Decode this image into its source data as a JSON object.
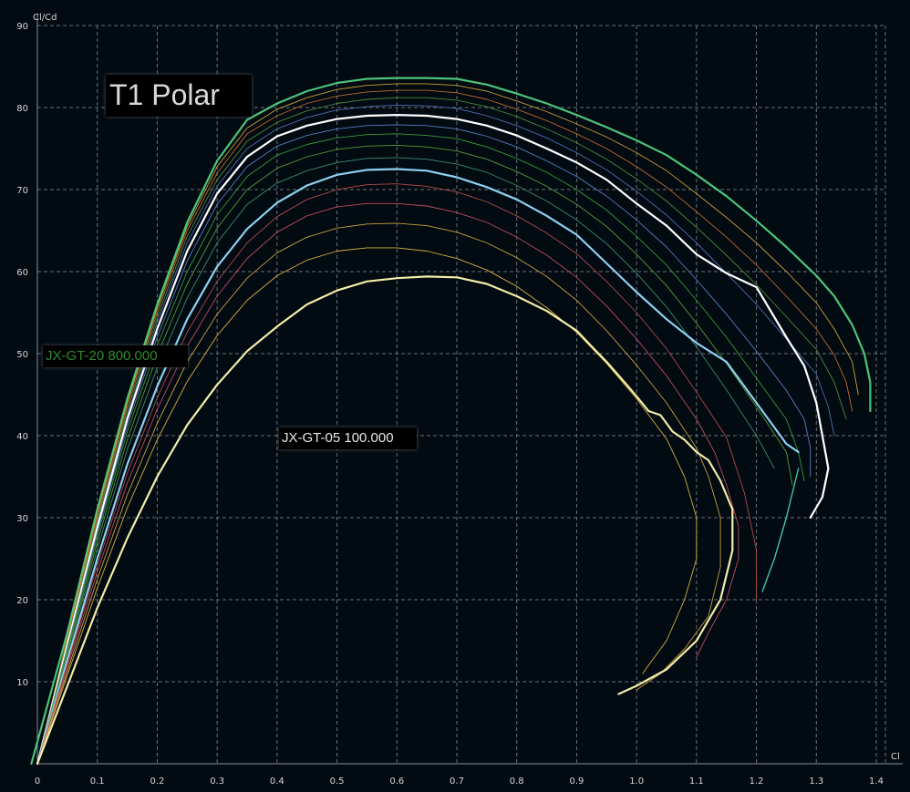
{
  "chart_data": {
    "type": "line",
    "title": "T1 Polar",
    "xlabel": "Cl",
    "ylabel": "Cl/Cd",
    "xlim": [
      0,
      1.4
    ],
    "ylim": [
      0,
      90
    ],
    "grid": true,
    "grid_style": "dashed",
    "background_color": "#020a12",
    "x_tick_labels": [
      "0",
      "0.1",
      "0.2",
      "0.3",
      "0.4",
      "0.5",
      "0.6",
      "0.7",
      "0.8",
      "0.9",
      "1.0",
      "1.1",
      "1.2",
      "1.3",
      "1.4"
    ],
    "y_tick_labels": [
      "10",
      "20",
      "30",
      "40",
      "50",
      "60",
      "70",
      "80",
      "90"
    ],
    "annotations": [
      {
        "text": "JX-GT-20  800.000",
        "color": "#2e8b2e"
      },
      {
        "text": "JX-GT-05  100.000",
        "color": "#e8e8e8"
      }
    ],
    "series": [
      {
        "name": "JX-GT-20  800.000",
        "color": "#4cc47a",
        "width": 2.2,
        "x": [
          -0.01,
          0.05,
          0.1,
          0.15,
          0.2,
          0.25,
          0.3,
          0.35,
          0.4,
          0.45,
          0.5,
          0.55,
          0.6,
          0.65,
          0.7,
          0.75,
          0.8,
          0.85,
          0.9,
          0.95,
          1.0,
          1.05,
          1.1,
          1.15,
          1.2,
          1.25,
          1.3,
          1.33,
          1.36,
          1.38,
          1.39,
          1.39
        ],
        "y": [
          0,
          16,
          31,
          44.5,
          56,
          66,
          73.5,
          78.5,
          80.5,
          82,
          83,
          83.5,
          83.6,
          83.6,
          83.5,
          82.8,
          81.7,
          80.5,
          79.1,
          77.6,
          76,
          74.2,
          71.8,
          69.2,
          66.2,
          63,
          59.5,
          57,
          53.5,
          50,
          46.5,
          43
        ]
      },
      {
        "name": "",
        "color": "#c9a032",
        "width": 0.9,
        "x": [
          0.0,
          0.05,
          0.1,
          0.15,
          0.2,
          0.25,
          0.3,
          0.35,
          0.4,
          0.45,
          0.5,
          0.55,
          0.6,
          0.65,
          0.7,
          0.75,
          0.8,
          0.85,
          0.9,
          0.95,
          1.0,
          1.05,
          1.1,
          1.15,
          1.2,
          1.25,
          1.3,
          1.33,
          1.36,
          1.37
        ],
        "y": [
          0,
          15.5,
          30.5,
          44,
          55.5,
          65.5,
          72.8,
          77.5,
          79.8,
          81.2,
          82.2,
          82.7,
          82.9,
          82.9,
          82.7,
          82,
          80.8,
          79.5,
          78,
          76.4,
          74.5,
          72.3,
          69.5,
          66.6,
          63.5,
          60,
          56.2,
          53,
          49,
          45
        ]
      },
      {
        "name": "",
        "color": "#c06a2e",
        "width": 0.9,
        "x": [
          0.0,
          0.05,
          0.1,
          0.15,
          0.2,
          0.25,
          0.3,
          0.35,
          0.4,
          0.45,
          0.5,
          0.55,
          0.6,
          0.65,
          0.7,
          0.75,
          0.8,
          0.85,
          0.9,
          0.95,
          1.0,
          1.05,
          1.1,
          1.15,
          1.2,
          1.25,
          1.3,
          1.33,
          1.35,
          1.36
        ],
        "y": [
          0,
          15.2,
          30,
          43.5,
          55,
          65,
          72,
          76.8,
          79,
          80.5,
          81.4,
          81.9,
          82.1,
          82.1,
          81.8,
          81,
          79.8,
          78.4,
          76.8,
          75,
          72.8,
          70.3,
          67.3,
          64.2,
          60.8,
          57,
          53,
          49.8,
          46.5,
          43
        ]
      },
      {
        "name": "",
        "color": "#4a8a3c",
        "width": 0.9,
        "x": [
          0.0,
          0.05,
          0.1,
          0.15,
          0.2,
          0.25,
          0.3,
          0.35,
          0.4,
          0.45,
          0.5,
          0.55,
          0.6,
          0.65,
          0.7,
          0.75,
          0.8,
          0.85,
          0.9,
          0.95,
          1.0,
          1.05,
          1.1,
          1.15,
          1.2,
          1.25,
          1.3,
          1.33,
          1.35
        ],
        "y": [
          0,
          15,
          29.6,
          43,
          54.4,
          64.3,
          71.2,
          75.9,
          78.2,
          79.6,
          80.5,
          81,
          81.2,
          81.2,
          80.9,
          80.1,
          78.9,
          77.4,
          75.7,
          73.7,
          71.3,
          68.6,
          65.4,
          62,
          58.4,
          54.5,
          50.5,
          46.5,
          42
        ]
      },
      {
        "name": "",
        "color": "#4f6fb0",
        "width": 0.9,
        "x": [
          0.0,
          0.05,
          0.1,
          0.15,
          0.2,
          0.25,
          0.3,
          0.35,
          0.4,
          0.45,
          0.5,
          0.55,
          0.6,
          0.65,
          0.7,
          0.75,
          0.8,
          0.85,
          0.9,
          0.95,
          1.0,
          1.05,
          1.1,
          1.15,
          1.2,
          1.25,
          1.3,
          1.32,
          1.33
        ],
        "y": [
          0,
          14.8,
          29.2,
          42.5,
          53.8,
          63.5,
          70.4,
          75,
          77.4,
          78.8,
          79.7,
          80.1,
          80.3,
          80.2,
          79.9,
          79,
          77.8,
          76.3,
          74.5,
          72.4,
          69.8,
          66.9,
          63.5,
          59.8,
          56,
          51.8,
          47.5,
          43.5,
          40
        ]
      },
      {
        "name": "",
        "color": "#ffffff",
        "width": 2.2,
        "x": [
          0.0,
          0.05,
          0.1,
          0.15,
          0.2,
          0.25,
          0.3,
          0.35,
          0.4,
          0.45,
          0.5,
          0.55,
          0.6,
          0.65,
          0.7,
          0.75,
          0.8,
          0.85,
          0.9,
          0.95,
          1.0,
          1.05,
          1.1,
          1.15,
          1.2,
          1.25,
          1.28,
          1.3,
          1.31,
          1.32,
          1.31,
          1.29
        ],
        "y": [
          0,
          14.5,
          28.8,
          42,
          53,
          62.5,
          69.5,
          74,
          76.5,
          77.8,
          78.6,
          79,
          79.1,
          79,
          78.6,
          77.8,
          76.6,
          75,
          73.3,
          71.2,
          68.3,
          65.6,
          62.1,
          59.8,
          58.1,
          52,
          48.5,
          44,
          40,
          36,
          32.5,
          30
        ]
      },
      {
        "name": "",
        "color": "#5a7fc0",
        "width": 0.9,
        "x": [
          0.0,
          0.05,
          0.1,
          0.15,
          0.2,
          0.25,
          0.3,
          0.35,
          0.4,
          0.45,
          0.5,
          0.55,
          0.6,
          0.65,
          0.7,
          0.75,
          0.8,
          0.85,
          0.9,
          0.95,
          1.0,
          1.05,
          1.1,
          1.15,
          1.2,
          1.25,
          1.28,
          1.29,
          1.29
        ],
        "y": [
          0,
          14.2,
          28.2,
          41.2,
          52,
          61.3,
          68.2,
          72.8,
          75.3,
          76.6,
          77.4,
          77.8,
          77.9,
          77.8,
          77.4,
          76.5,
          75.2,
          73.5,
          71.6,
          69.2,
          66.3,
          63,
          59,
          54.8,
          50.3,
          45.5,
          42,
          38.5,
          35
        ]
      },
      {
        "name": "",
        "color": "#3a9a3a",
        "width": 0.9,
        "x": [
          0.0,
          0.05,
          0.1,
          0.15,
          0.2,
          0.25,
          0.3,
          0.35,
          0.4,
          0.45,
          0.5,
          0.55,
          0.6,
          0.65,
          0.7,
          0.75,
          0.8,
          0.85,
          0.9,
          0.95,
          1.0,
          1.05,
          1.1,
          1.15,
          1.2,
          1.25,
          1.27,
          1.28
        ],
        "y": [
          0,
          14,
          27.7,
          40.5,
          51,
          60,
          66.9,
          71.6,
          74.2,
          75.5,
          76.3,
          76.7,
          76.8,
          76.6,
          76.2,
          75.2,
          73.8,
          72.1,
          70,
          67.5,
          64.3,
          60.8,
          56.5,
          52,
          47,
          42,
          38,
          34.5
        ]
      },
      {
        "name": "",
        "color": "#5a9a3a",
        "width": 0.9,
        "x": [
          0.0,
          0.05,
          0.1,
          0.15,
          0.2,
          0.25,
          0.3,
          0.35,
          0.4,
          0.45,
          0.5,
          0.55,
          0.6,
          0.65,
          0.7,
          0.75,
          0.8,
          0.85,
          0.9,
          0.95,
          1.0,
          1.05,
          1.1,
          1.15,
          1.2,
          1.25,
          1.26
        ],
        "y": [
          0,
          13.6,
          27,
          39.5,
          49.8,
          58.5,
          65.3,
          70,
          72.6,
          74,
          74.9,
          75.3,
          75.4,
          75.2,
          74.7,
          73.7,
          72.2,
          70.4,
          68.2,
          65.5,
          62.1,
          58.3,
          53.7,
          48.8,
          43.5,
          38,
          34
        ]
      },
      {
        "name": "",
        "color": "#3a8c6a",
        "width": 0.9,
        "x": [
          0.0,
          0.05,
          0.1,
          0.15,
          0.2,
          0.25,
          0.3,
          0.35,
          0.4,
          0.45,
          0.5,
          0.55,
          0.6,
          0.65,
          0.7,
          0.75,
          0.8,
          0.85,
          0.9,
          0.95,
          1.0,
          1.05,
          1.1,
          1.15,
          1.2,
          1.23
        ],
        "y": [
          0,
          13.2,
          26.2,
          38.3,
          48.3,
          56.8,
          63.5,
          68.2,
          70.8,
          72.3,
          73.3,
          73.8,
          73.9,
          73.7,
          73.1,
          72.1,
          70.5,
          68.6,
          66.3,
          63.4,
          59.8,
          55.7,
          50.8,
          45.6,
          40,
          36
        ]
      },
      {
        "name": "",
        "color": "#44c4a0",
        "width": 1.4,
        "x": [
          1.21,
          1.23,
          1.25,
          1.27
        ],
        "y": [
          21,
          25,
          30,
          36
        ]
      },
      {
        "name": "",
        "color": "#8fd0f0",
        "width": 2.2,
        "x": [
          0.0,
          0.05,
          0.1,
          0.15,
          0.2,
          0.25,
          0.3,
          0.35,
          0.4,
          0.45,
          0.5,
          0.55,
          0.6,
          0.65,
          0.7,
          0.75,
          0.8,
          0.85,
          0.9,
          0.95,
          1.0,
          1.05,
          1.1,
          1.15,
          1.2,
          1.25,
          1.27
        ],
        "y": [
          0,
          12.6,
          25,
          36.5,
          46,
          54.2,
          60.6,
          65.2,
          68.4,
          70.5,
          71.8,
          72.4,
          72.5,
          72.3,
          71.5,
          70.3,
          68.8,
          66.8,
          64.5,
          61,
          57.5,
          54.2,
          51.3,
          49,
          44,
          39,
          38
        ]
      },
      {
        "name": "",
        "color": "#b04a4a",
        "width": 0.9,
        "x": [
          0.0,
          0.05,
          0.1,
          0.15,
          0.2,
          0.25,
          0.3,
          0.35,
          0.4,
          0.45,
          0.5,
          0.55,
          0.6,
          0.65,
          0.7,
          0.75,
          0.8,
          0.85,
          0.9,
          0.95,
          1.0,
          1.05,
          1.1,
          1.15,
          1.18,
          1.2,
          1.2
        ],
        "y": [
          0,
          12.2,
          24.2,
          35.4,
          44.6,
          52.6,
          58.8,
          63.5,
          66.7,
          68.8,
          70,
          70.6,
          70.7,
          70.4,
          69.7,
          68.5,
          66.8,
          64.7,
          62.2,
          58.8,
          55,
          50.6,
          45.3,
          39.8,
          33,
          26,
          20
        ]
      },
      {
        "name": "",
        "color": "#c04a60",
        "width": 0.9,
        "x": [
          0.0,
          0.05,
          0.1,
          0.15,
          0.2,
          0.25,
          0.3,
          0.35,
          0.4,
          0.45,
          0.5,
          0.55,
          0.6,
          0.65,
          0.7,
          0.75,
          0.8,
          0.85,
          0.9,
          0.95,
          1.0,
          1.05,
          1.1,
          1.13,
          1.15,
          1.17,
          1.17,
          1.15,
          1.12,
          1.1
        ],
        "y": [
          0,
          11.8,
          23.4,
          34.2,
          43.2,
          50.9,
          57,
          61.6,
          64.8,
          66.8,
          67.9,
          68.3,
          68.3,
          68,
          67.2,
          66,
          64.2,
          62,
          59.3,
          55.8,
          51.8,
          47.3,
          42,
          38,
          34,
          29,
          25,
          20,
          16,
          13
        ]
      },
      {
        "name": "",
        "color": "#c8a040",
        "width": 0.9,
        "x": [
          0.0,
          0.05,
          0.1,
          0.15,
          0.2,
          0.25,
          0.3,
          0.35,
          0.4,
          0.45,
          0.5,
          0.55,
          0.6,
          0.65,
          0.7,
          0.75,
          0.8,
          0.85,
          0.9,
          0.95,
          1.0,
          1.05,
          1.1,
          1.12,
          1.14,
          1.14,
          1.12,
          1.08,
          1.04,
          1.0
        ],
        "y": [
          0,
          11.3,
          22.5,
          32.8,
          41.5,
          49,
          54.8,
          59.2,
          62.3,
          64.2,
          65.3,
          65.8,
          65.9,
          65.6,
          64.8,
          63.5,
          61.7,
          59.4,
          56.5,
          52.8,
          48.6,
          44,
          38.5,
          35,
          30,
          24,
          18,
          14,
          11,
          9
        ]
      },
      {
        "name": "",
        "color": "#d8b040",
        "width": 0.9,
        "x": [
          0.0,
          0.05,
          0.1,
          0.15,
          0.2,
          0.25,
          0.3,
          0.35,
          0.4,
          0.45,
          0.5,
          0.55,
          0.6,
          0.65,
          0.7,
          0.75,
          0.8,
          0.85,
          0.9,
          0.95,
          1.0,
          1.05,
          1.08,
          1.1,
          1.1,
          1.08,
          1.05,
          1.01
        ],
        "y": [
          0,
          10.8,
          21.4,
          31.2,
          39.5,
          46.6,
          52.2,
          56.5,
          59.5,
          61.4,
          62.5,
          62.9,
          62.9,
          62.5,
          61.6,
          60.2,
          58.2,
          55.6,
          52.6,
          48.8,
          44.5,
          39.6,
          35,
          30,
          25,
          20,
          15,
          11
        ]
      },
      {
        "name": "JX-GT-05  100.000",
        "color": "#f2eda8",
        "width": 2.2,
        "x": [
          0.0,
          0.05,
          0.1,
          0.15,
          0.2,
          0.25,
          0.3,
          0.35,
          0.4,
          0.45,
          0.5,
          0.55,
          0.6,
          0.65,
          0.7,
          0.75,
          0.8,
          0.85,
          0.9,
          0.93,
          0.95,
          0.98,
          1.0,
          1.02,
          1.04,
          1.06,
          1.08,
          1.1,
          1.12,
          1.14,
          1.16,
          1.16,
          1.14,
          1.1,
          1.05,
          1.0,
          0.97
        ],
        "y": [
          0,
          9.5,
          19,
          27.5,
          35,
          41.3,
          46.2,
          50.3,
          53.3,
          56,
          57.7,
          58.8,
          59.2,
          59.4,
          59.3,
          58.5,
          57,
          55.2,
          52.8,
          50.5,
          49,
          46.5,
          44.8,
          43,
          42.5,
          40.5,
          39.5,
          38,
          37,
          34.5,
          31,
          26,
          20,
          15,
          11.5,
          9.5,
          8.5
        ]
      }
    ]
  }
}
